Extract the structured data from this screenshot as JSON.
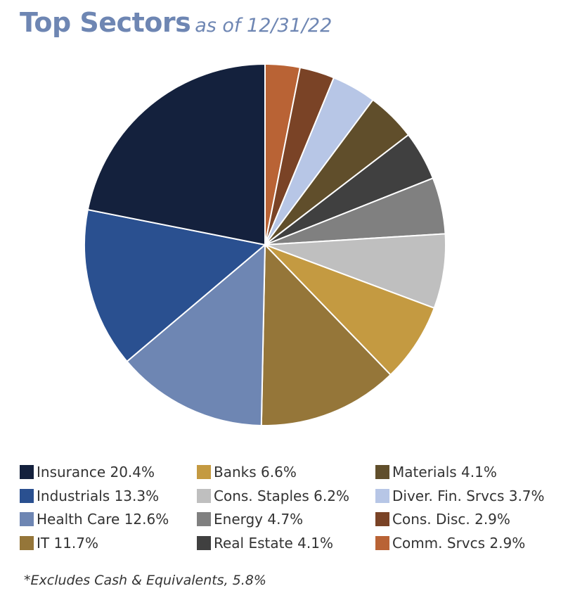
{
  "chart_data": {
    "type": "pie",
    "title": "Top Sectors",
    "subtitle": "as of 12/31/22",
    "slices": [
      {
        "label": "Comm. Srvcs 2.9%",
        "value": 2.9,
        "color": "#b96335"
      },
      {
        "label": "Cons. Disc. 2.9%",
        "value": 2.9,
        "color": "#7a4326"
      },
      {
        "label": "Diver. Fin. Srvcs 3.7%",
        "value": 3.7,
        "color": "#b7c6e6"
      },
      {
        "label": "Materials 4.1%",
        "value": 4.1,
        "color": "#604e2b"
      },
      {
        "label": "Real Estate 4.1%",
        "value": 4.1,
        "color": "#404040"
      },
      {
        "label": "Energy 4.7%",
        "value": 4.7,
        "color": "#808080"
      },
      {
        "label": "Cons. Staples 6.2%",
        "value": 6.2,
        "color": "#bfbfbf"
      },
      {
        "label": "Banks 6.6%",
        "value": 6.6,
        "color": "#c49a41"
      },
      {
        "label": "IT 11.7%",
        "value": 11.7,
        "color": "#957639"
      },
      {
        "label": "Health Care 12.6%",
        "value": 12.6,
        "color": "#6e86b3"
      },
      {
        "label": "Industrials 13.3%",
        "value": 13.3,
        "color": "#2a5090"
      },
      {
        "label": "Insurance 20.4%",
        "value": 20.4,
        "color": "#14213d"
      }
    ],
    "legend_columns": [
      [
        "Insurance 20.4%",
        "Industrials 13.3%",
        "Health Care 12.6%",
        "IT 11.7%"
      ],
      [
        "Banks 6.6%",
        "Cons. Staples 6.2%",
        "Energy 4.7%",
        "Real Estate 4.1%"
      ],
      [
        "Materials 4.1%",
        "Diver. Fin. Srvcs 3.7%",
        "Cons. Disc. 2.9%",
        "Comm. Srvcs 2.9%"
      ]
    ],
    "footnote": "*Excludes Cash & Equivalents, 5.8%"
  }
}
